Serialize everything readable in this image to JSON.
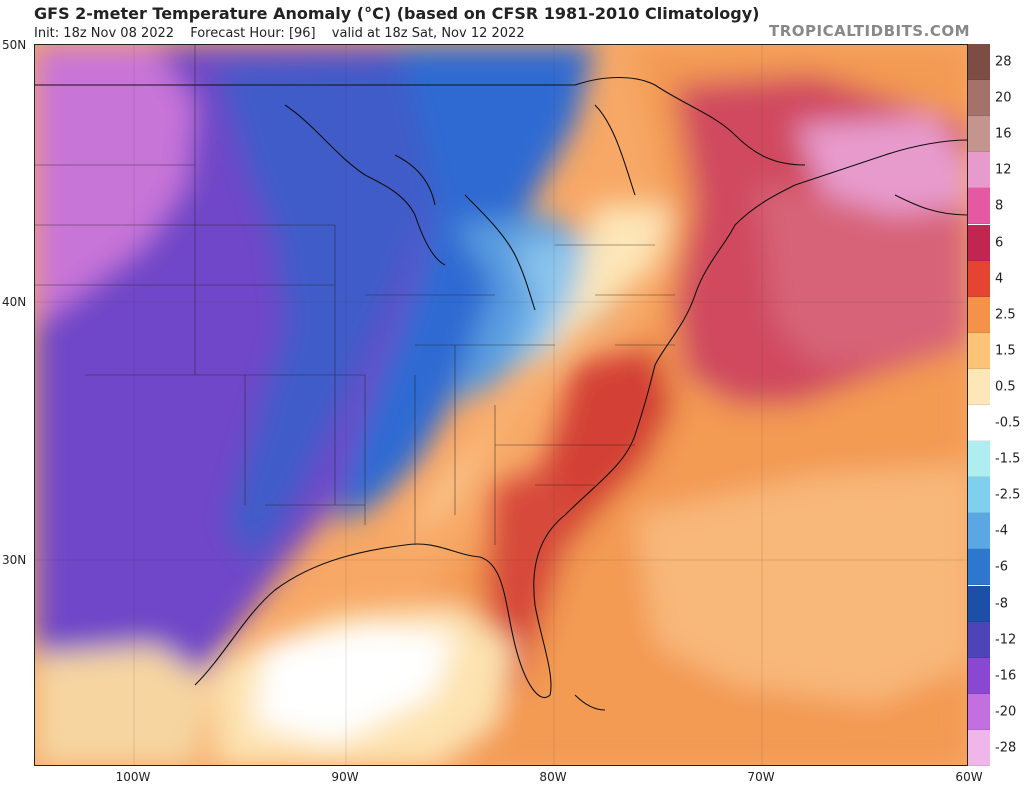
{
  "header": {
    "title": "GFS 2-meter Temperature Anomaly (°C) (based on CFSR 1981-2010 Climatology)",
    "init": "Init: 18z Nov 08 2022",
    "forecast_hour": "Forecast Hour: [96]",
    "valid": "valid at 18z Sat, Nov 12 2022",
    "brand": "TROPICALTIDBITS.COM"
  },
  "map": {
    "lat_labels": [
      "50N",
      "40N",
      "30N"
    ],
    "lon_labels": [
      "100W",
      "90W",
      "80W",
      "70W",
      "60W"
    ],
    "extent": {
      "west": -105,
      "east": -60,
      "south": 22,
      "north": 50
    }
  },
  "colorbar": {
    "labels": [
      "28",
      "20",
      "16",
      "12",
      "8",
      "6",
      "4",
      "2.5",
      "1.5",
      "0.5",
      "-0.5",
      "-1.5",
      "-2.5",
      "-4",
      "-6",
      "-8",
      "-12",
      "-16",
      "-20",
      "-28"
    ],
    "colors": [
      "#7d4c44",
      "#a5716b",
      "#c4948f",
      "#e79bcd",
      "#e35aa3",
      "#c0264f",
      "#e34532",
      "#f5924a",
      "#fcc477",
      "#fde6b8",
      "#ffffff",
      "#aeeef0",
      "#7fcfee",
      "#5ba7e3",
      "#2e77cf",
      "#1b50a6",
      "#4d44b8",
      "#8a48d2",
      "#c36fdf",
      "#efb6e9"
    ]
  }
}
